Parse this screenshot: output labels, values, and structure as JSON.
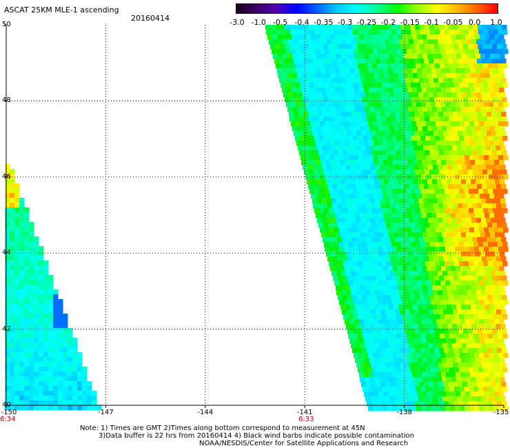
{
  "header": {
    "title": "ASCAT 25KM MLE-1 ascending",
    "date": "20160414"
  },
  "colorbar": {
    "labels": [
      "-3.0",
      "-1.0",
      "-0.5",
      "-0.4",
      "-0.35",
      "-0.3",
      "-0.25",
      "-0.2",
      "-0.15",
      "-0.1",
      "-0.05",
      "0.0",
      "1.0"
    ],
    "colors": [
      "#1a001a",
      "#3c0064",
      "#5000b4",
      "#0000ff",
      "#0064ff",
      "#00c8ff",
      "#00ffff",
      "#00ff96",
      "#00ff00",
      "#96ff00",
      "#ffff00",
      "#ffb400",
      "#ff6400",
      "#ff0000"
    ]
  },
  "map": {
    "lat_labels": [
      "50",
      "48",
      "46",
      "44",
      "42",
      "40"
    ],
    "lon_labels": [
      "-150",
      "-147",
      "-144",
      "-141",
      "-138",
      "-135"
    ],
    "lat_range": [
      40,
      50
    ],
    "lon_range": [
      -150,
      -135
    ],
    "time_labels": [
      {
        "lon": -150,
        "text": "6:34"
      },
      {
        "lon": -141,
        "text": "6:33"
      }
    ]
  },
  "notes": {
    "line1": "Note: 1) Times are GMT 2)Times along bottom correspond to measurement at 45N",
    "line2": "3)Data buffer is 22 hrs from 20160414 4) Black wind barbs indicate possible contamination",
    "line3": "NOAA/NESDIS/Center for Satellite Applications and Research"
  }
}
